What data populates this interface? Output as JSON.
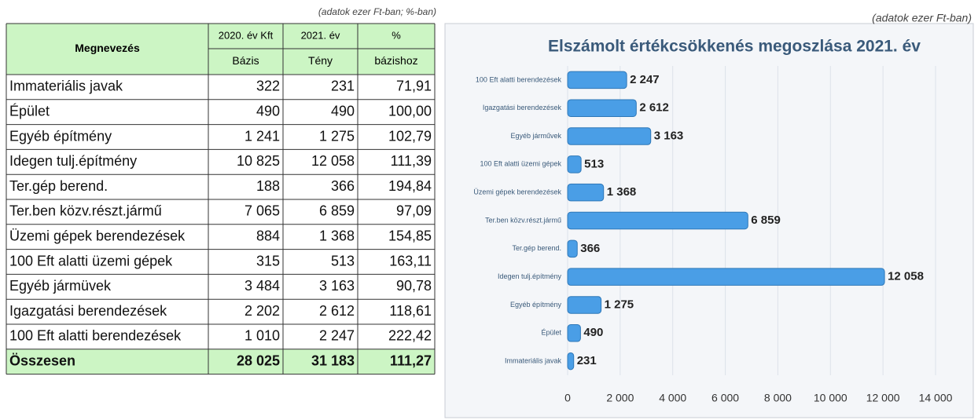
{
  "table": {
    "note": "(adatok ezer Ft-ban; %-ban)",
    "header": [
      [
        "Megnevezés",
        "2020. év Kft",
        "2021. év",
        "%"
      ],
      [
        "Bázis",
        "Tény",
        "bázishoz"
      ]
    ],
    "rows": [
      [
        "Immateriális javak",
        "322",
        "231",
        "71,91"
      ],
      [
        "Épület",
        "490",
        "490",
        "100,00"
      ],
      [
        "Egyéb építmény",
        "1 241",
        "1 275",
        "102,79"
      ],
      [
        "Idegen tulj.építmény",
        "10 825",
        "12 058",
        "111,39"
      ],
      [
        "Ter.gép berend.",
        "188",
        "366",
        "194,84"
      ],
      [
        "Ter.ben közv.részt.jármű",
        "7 065",
        "6 859",
        "97,09"
      ],
      [
        "Üzemi gépek berendezések",
        "884",
        "1 368",
        "154,85"
      ],
      [
        "100 Eft alatti üzemi gépek",
        "315",
        "513",
        "163,11"
      ],
      [
        "Egyéb jármüvek",
        "3 484",
        "3 163",
        "90,78"
      ],
      [
        "Igazgatási berendezések",
        "2 202",
        "2 612",
        "118,61"
      ],
      [
        "100 Eft alatti berendezések",
        "1 010",
        "2 247",
        "222,42"
      ]
    ],
    "total": [
      "Összesen",
      "28 025",
      "31 183",
      "111,27"
    ]
  },
  "chart_data": {
    "type": "barh",
    "note": "(adatok ezer Ft-ban)",
    "title": "Elszámolt értékcsökkenés megoszlása 2021. év",
    "categories": [
      "100 Eft alatti berendezések",
      "Igazgatási berendezések",
      "Egyéb járművek",
      "100 Eft alatti üzemi gépek",
      "Üzemi gépek berendezések",
      "Ter.ben közv.részt.jármű",
      "Ter.gép berend.",
      "Idegen tulj.építmény",
      "Egyéb építmény",
      "Épület",
      "Immateriális javak"
    ],
    "values": [
      2247,
      2612,
      3163,
      513,
      1368,
      6859,
      366,
      12058,
      1275,
      490,
      231
    ],
    "value_labels": [
      "2 247",
      "2 612",
      "3 163",
      "513",
      "1 368",
      "6 859",
      "366",
      "12 058",
      "1 275",
      "490",
      "231"
    ],
    "color": "#4a9ee6",
    "xlim": [
      0,
      14000
    ],
    "xticks": [
      0,
      {
        "value": 2000,
        "label": "2 000"
      },
      {
        "value": 4000,
        "label": "4 000"
      },
      {
        "value": 6000,
        "label": "6 000"
      },
      {
        "value": 8000,
        "label": "8 000"
      },
      {
        "value": 10000,
        "label": "10 000"
      },
      {
        "value": 12000,
        "label": "12 000"
      },
      {
        "value": 14000,
        "label": "14 000"
      }
    ],
    "grid": true
  }
}
